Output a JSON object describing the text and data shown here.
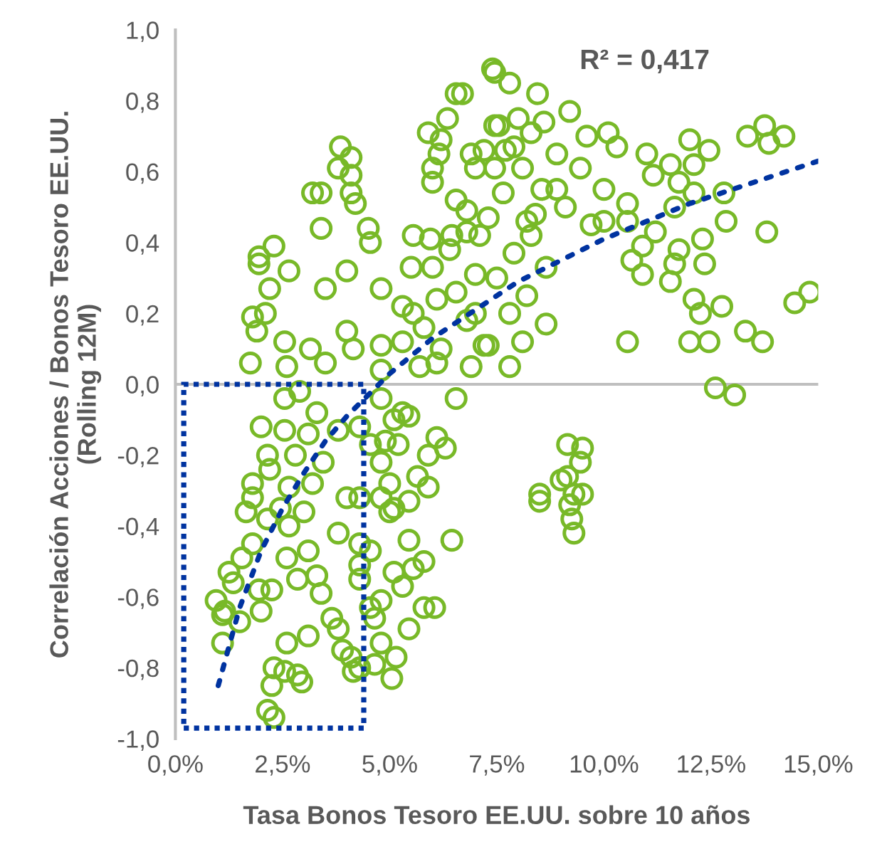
{
  "chart_data": {
    "type": "scatter",
    "xlabel": "Tasa Bonos Tesoro EE.UU. sobre 10 años",
    "ylabel": "Correlación Acciones / Bonos Tesoro EE.UU.\n(Rolling 12M)",
    "annotations": [
      "R² = 0,417"
    ],
    "xlim": [
      0,
      15
    ],
    "ylim": [
      -1,
      1
    ],
    "xticks": [
      {
        "value": 0,
        "label": "0,0%"
      },
      {
        "value": 2.5,
        "label": "2,5%"
      },
      {
        "value": 5,
        "label": "5,0%"
      },
      {
        "value": 7.5,
        "label": "7,5%"
      },
      {
        "value": 10,
        "label": "10,0%"
      },
      {
        "value": 12.5,
        "label": "12,5%"
      },
      {
        "value": 15,
        "label": "15,0%"
      }
    ],
    "yticks": [
      {
        "value": -1,
        "label": "-1,0"
      },
      {
        "value": -0.8,
        "label": "-0,8"
      },
      {
        "value": -0.6,
        "label": "-0,6"
      },
      {
        "value": -0.4,
        "label": "-0,4"
      },
      {
        "value": -0.2,
        "label": "-0,2"
      },
      {
        "value": 0,
        "label": "0,0"
      },
      {
        "value": 0.2,
        "label": "0,2"
      },
      {
        "value": 0.4,
        "label": "0,4"
      },
      {
        "value": 0.6,
        "label": "0,6"
      },
      {
        "value": 0.8,
        "label": "0,8"
      },
      {
        "value": 1,
        "label": "1,0"
      }
    ],
    "grid": false,
    "legend": false,
    "ref_lines": [
      {
        "axis": "y",
        "value": 0,
        "color": "#bfbfbf"
      }
    ],
    "series": [
      {
        "color": "#78b928",
        "marker": "circle",
        "x": [
          6.55,
          6.7,
          6.35,
          5.9,
          6.2,
          6.15,
          6.0,
          6.0,
          3.85,
          4.1,
          3.8,
          4.1,
          3.2,
          3.4,
          4.1,
          4.2,
          3.4,
          4.5,
          4.55,
          2.3,
          1.95,
          1.95,
          2.65,
          4.0,
          2.2,
          3.5,
          4.8,
          5.5,
          6.0,
          5.55,
          5.95,
          6.45,
          6.8,
          6.8,
          6.55,
          7.0,
          6.9,
          7.2,
          7.45,
          7.4,
          1.8,
          2.1,
          1.9,
          2.55,
          3.15,
          1.75,
          3.5,
          4.0,
          4.15,
          4.8,
          5.3,
          5.55,
          5.8,
          6.2,
          6.1,
          6.55,
          7.0,
          7.0,
          7.2,
          6.8,
          2.6,
          4.8,
          6.1,
          7.45,
          7.8,
          8.45,
          9.2,
          7.55,
          7.9,
          8.3,
          8.9,
          9.45,
          8.1,
          7.45,
          7.65,
          8.55,
          9.1,
          7.3,
          8.2,
          10.0,
          10.1,
          10.3,
          10.0,
          10.55,
          11.0,
          11.15,
          11.55,
          12.0,
          12.1,
          12.45,
          11.75,
          12.1,
          12.8,
          13.35,
          13.75,
          14.2,
          13.85,
          11.65,
          10.55,
          10.9,
          10.65,
          11.2,
          11.75,
          12.3,
          12.85,
          13.8,
          11.65,
          10.9,
          11.55,
          12.1,
          12.35,
          12.75,
          12.25,
          14.45,
          14.8,
          10.55,
          12.0,
          12.45,
          13.3,
          13.7,
          8.65,
          8.1,
          7.8,
          7.3,
          8.65,
          7.9,
          8.3,
          12.6,
          13.05,
          9.15,
          9.5,
          9.45,
          9.0,
          9.15,
          8.5,
          8.5,
          9.3,
          9.5,
          9.2,
          9.25,
          9.3,
          2.55,
          2.9,
          3.3,
          2.0,
          2.55,
          3.1,
          3.8,
          4.3,
          4.8,
          5.1,
          5.45,
          6.55,
          2.15,
          2.8,
          3.45,
          2.2,
          1.8,
          2.65,
          3.2,
          1.8,
          2.45,
          3.0,
          1.65,
          2.65,
          2.15,
          3.8,
          3.1,
          1.8,
          1.55,
          2.6,
          1.25,
          1.35,
          2.85,
          3.3,
          3.4,
          1.95,
          2.25,
          0.95,
          1.15,
          1.1,
          1.5,
          2.0,
          1.1,
          3.65,
          3.8,
          3.9,
          3.1,
          2.6,
          2.3,
          2.55,
          2.85,
          2.25,
          2.95,
          2.15,
          2.3,
          4.1,
          4.15,
          4.3,
          4.8,
          5.05,
          5.15,
          4.65,
          5.45,
          4.65,
          4.55,
          4.8,
          4.3,
          4.3,
          4.55,
          4.3,
          5.1,
          5.3,
          5.55,
          5.8,
          6.05,
          5.8,
          5.45,
          6.45,
          4.3,
          4.0,
          4.8,
          5.1,
          5.45,
          5.9,
          5.65,
          6.1,
          6.3,
          5.9,
          5.0,
          4.8,
          5.2,
          4.55,
          5.3,
          4.9,
          5.0,
          8.0,
          8.6,
          7.7,
          8.9,
          8.4,
          9.6,
          9.7,
          7.1,
          7.5,
          6.4,
          5.7,
          5.3,
          7.8,
          8.2,
          6.9
        ],
        "values": [
          0.82,
          0.82,
          0.75,
          0.71,
          0.69,
          0.65,
          0.61,
          0.57,
          0.67,
          0.64,
          0.61,
          0.59,
          0.54,
          0.54,
          0.54,
          0.51,
          0.44,
          0.44,
          0.4,
          0.39,
          0.36,
          0.34,
          0.32,
          0.32,
          0.27,
          0.27,
          0.27,
          0.33,
          0.33,
          0.42,
          0.41,
          0.42,
          0.43,
          0.49,
          0.52,
          0.61,
          0.65,
          0.66,
          0.73,
          0.89,
          0.19,
          0.2,
          0.15,
          0.12,
          0.1,
          0.06,
          0.06,
          0.15,
          0.1,
          0.11,
          0.12,
          0.2,
          0.16,
          0.1,
          0.24,
          0.26,
          0.31,
          0.2,
          0.11,
          0.18,
          0.05,
          0.04,
          0.06,
          0.88,
          0.85,
          0.82,
          0.77,
          0.73,
          0.67,
          0.71,
          0.65,
          0.61,
          0.61,
          0.61,
          0.54,
          0.55,
          0.5,
          0.47,
          0.46,
          0.55,
          0.71,
          0.67,
          0.46,
          0.51,
          0.65,
          0.59,
          0.62,
          0.69,
          0.62,
          0.66,
          0.57,
          0.54,
          0.54,
          0.7,
          0.73,
          0.7,
          0.68,
          0.5,
          0.46,
          0.39,
          0.35,
          0.43,
          0.38,
          0.41,
          0.46,
          0.43,
          0.34,
          0.31,
          0.29,
          0.24,
          0.34,
          0.22,
          0.2,
          0.23,
          0.26,
          0.12,
          0.12,
          0.12,
          0.15,
          0.12,
          0.17,
          0.12,
          0.05,
          0.11,
          0.33,
          0.37,
          0.42,
          -0.01,
          -0.03,
          -0.17,
          -0.18,
          -0.22,
          -0.27,
          -0.26,
          -0.31,
          -0.33,
          -0.31,
          -0.31,
          -0.34,
          -0.38,
          -0.42,
          -0.04,
          -0.02,
          -0.08,
          -0.12,
          -0.13,
          -0.14,
          -0.13,
          -0.12,
          -0.04,
          -0.1,
          -0.09,
          -0.04,
          -0.2,
          -0.2,
          -0.22,
          -0.24,
          -0.28,
          -0.29,
          -0.28,
          -0.32,
          -0.35,
          -0.36,
          -0.36,
          -0.4,
          -0.38,
          -0.42,
          -0.47,
          -0.45,
          -0.49,
          -0.49,
          -0.53,
          -0.56,
          -0.55,
          -0.54,
          -0.59,
          -0.58,
          -0.58,
          -0.61,
          -0.64,
          -0.65,
          -0.67,
          -0.64,
          -0.73,
          -0.66,
          -0.69,
          -0.75,
          -0.71,
          -0.73,
          -0.8,
          -0.81,
          -0.82,
          -0.85,
          -0.84,
          -0.92,
          -0.94,
          -0.77,
          -0.81,
          -0.8,
          -0.73,
          -0.83,
          -0.77,
          -0.79,
          -0.69,
          -0.66,
          -0.63,
          -0.61,
          -0.51,
          -0.55,
          -0.47,
          -0.45,
          -0.53,
          -0.57,
          -0.52,
          -0.5,
          -0.63,
          -0.63,
          -0.44,
          -0.44,
          -0.32,
          -0.32,
          -0.32,
          -0.35,
          -0.33,
          -0.29,
          -0.26,
          -0.15,
          -0.18,
          -0.2,
          -0.28,
          -0.22,
          -0.17,
          -0.17,
          -0.08,
          -0.16,
          -0.36,
          0.75,
          0.74,
          0.66,
          0.55,
          0.48,
          0.7,
          0.45,
          0.42,
          0.3,
          0.38,
          0.05,
          0.22,
          0.2,
          0.25,
          0.05
        ]
      },
      {
        "type": "line",
        "color": "#0033a0",
        "line_style": "dotted",
        "marker": "none",
        "x": [
          1,
          1.5,
          2,
          2.5,
          3,
          3.5,
          4,
          5,
          6,
          7,
          8,
          9,
          10,
          11,
          12,
          13,
          14,
          15
        ],
        "values": [
          -0.85,
          -0.63,
          -0.47,
          -0.35,
          -0.25,
          -0.16,
          -0.09,
          0.03,
          0.13,
          0.21,
          0.29,
          0.35,
          0.41,
          0.46,
          0.51,
          0.55,
          0.59,
          0.63
        ]
      }
    ]
  }
}
